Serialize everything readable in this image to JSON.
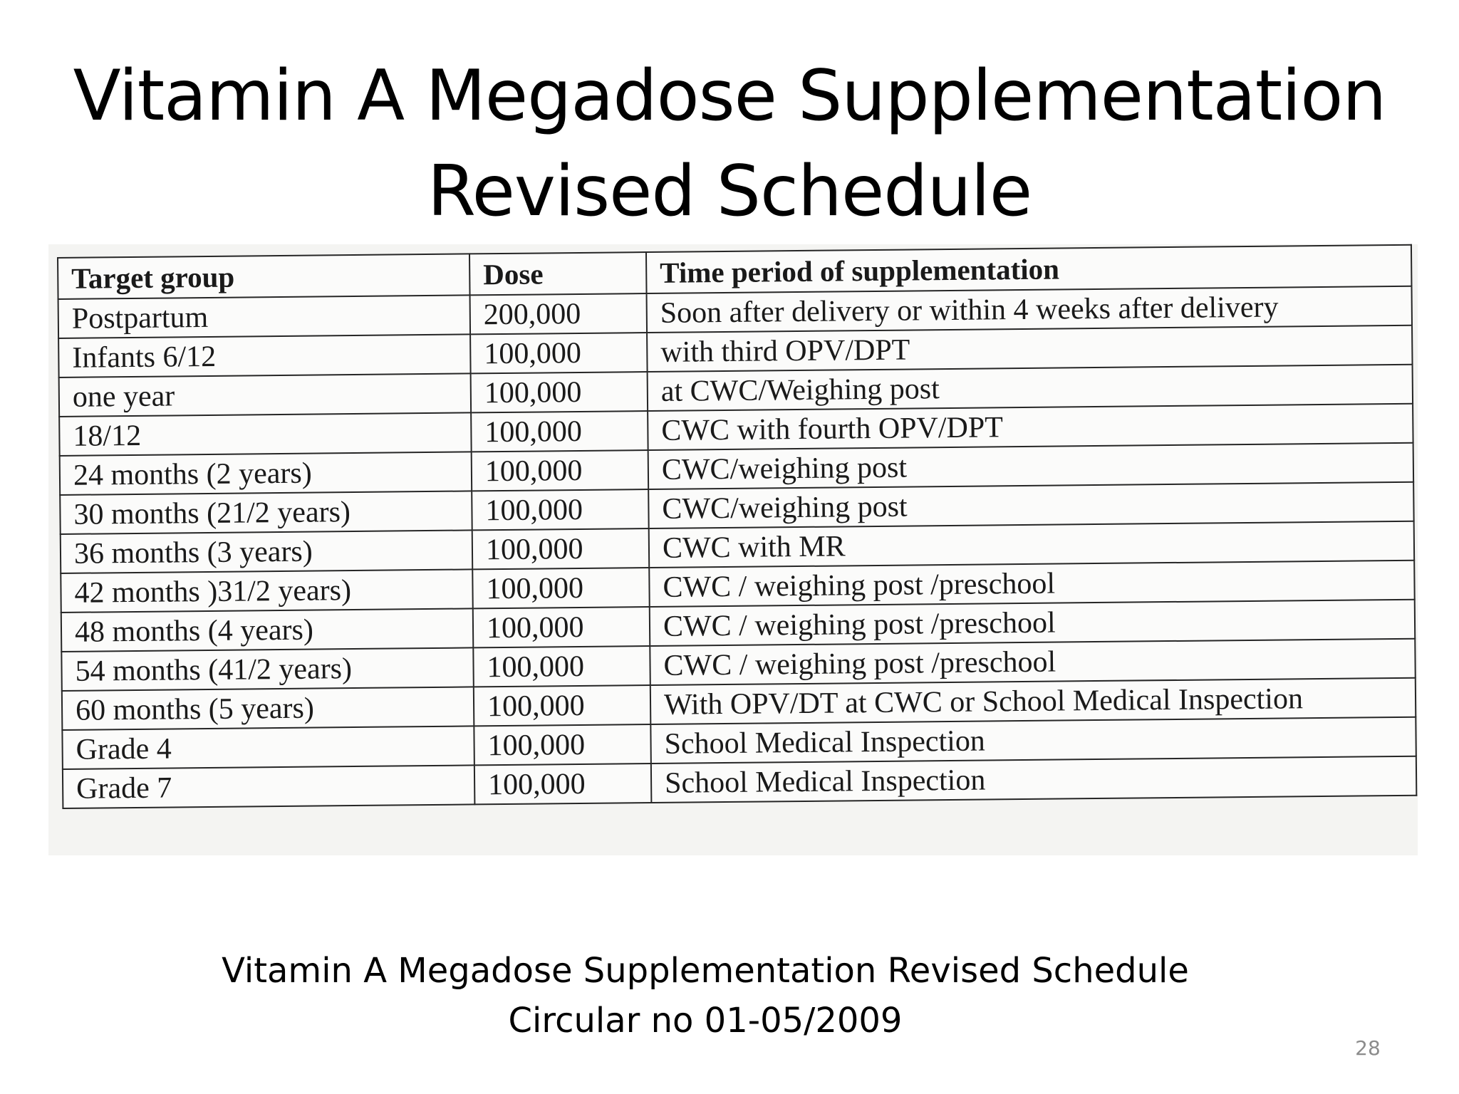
{
  "slide": {
    "title_line1": "Vitamin A Megadose Supplementation",
    "title_line2": "Revised Schedule",
    "caption_line1": "Vitamin A Megadose Supplementation Revised Schedule",
    "caption_line2": "Circular no 01-05/2009",
    "page_number": "28"
  },
  "table": {
    "headers": [
      "Target group",
      "Dose",
      "Time period of supplementation"
    ],
    "rows": [
      [
        "Postpartum",
        "200,000",
        "Soon after delivery or within 4 weeks after delivery"
      ],
      [
        "Infants 6/12",
        "100,000",
        "with third OPV/DPT"
      ],
      [
        "one year",
        "100,000",
        "at CWC/Weighing post"
      ],
      [
        "18/12",
        "100,000",
        "CWC with fourth OPV/DPT"
      ],
      [
        "24 months (2 years)",
        "100,000",
        "CWC/weighing post"
      ],
      [
        "30 months (21/2 years)",
        "100,000",
        "CWC/weighing post"
      ],
      [
        "36 months (3 years)",
        "100,000",
        "CWC with MR"
      ],
      [
        "42 months )31/2 years)",
        "100,000",
        "CWC / weighing post /preschool"
      ],
      [
        "48 months (4 years)",
        "100,000",
        "CWC / weighing post /preschool"
      ],
      [
        "54 months (41/2 years)",
        "100,000",
        "CWC / weighing post /preschool"
      ],
      [
        "60 months (5 years)",
        "100,000",
        "With OPV/DT at CWC or School Medical Inspection"
      ],
      [
        "Grade 4",
        "100,000",
        "School Medical Inspection"
      ],
      [
        "Grade 7",
        "100,000",
        "School Medical Inspection"
      ]
    ]
  }
}
